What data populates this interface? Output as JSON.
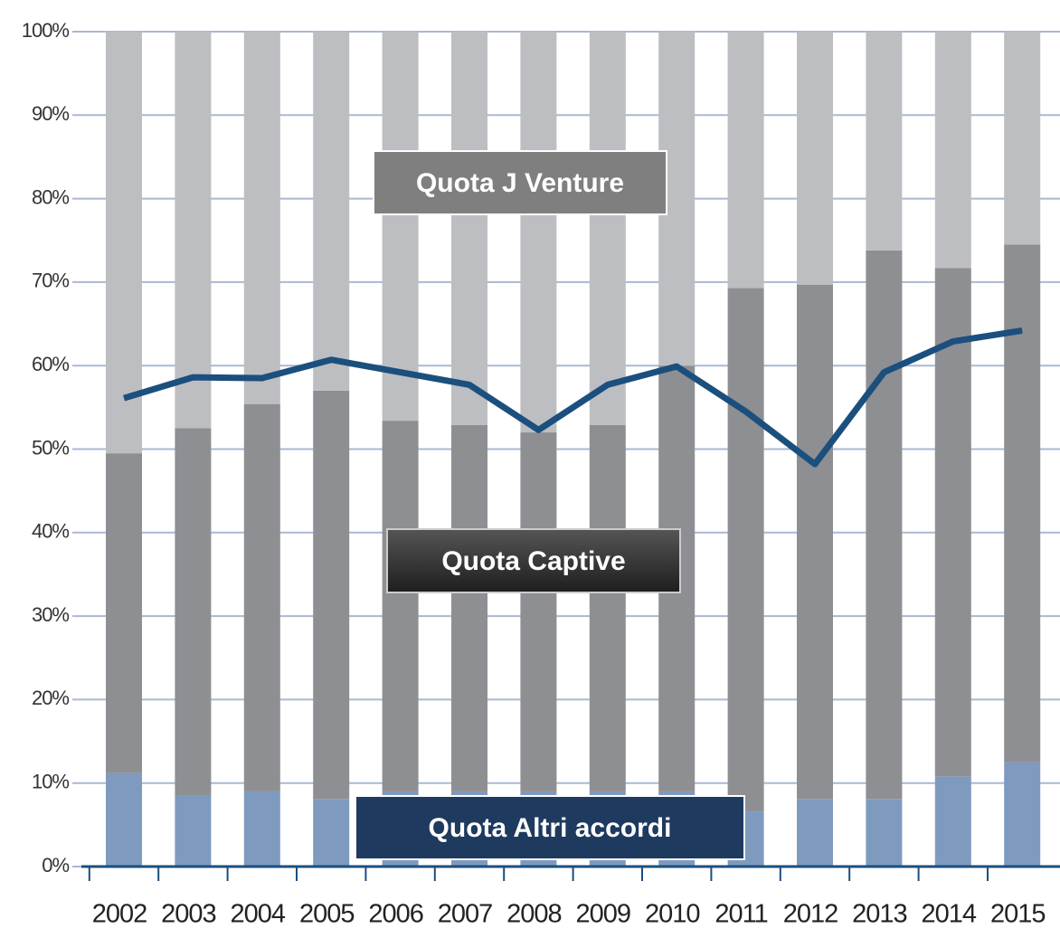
{
  "chart_data": {
    "type": "bar",
    "stacked": true,
    "categories": [
      "2002",
      "2003",
      "2004",
      "2005",
      "2006",
      "2007",
      "2008",
      "2009",
      "2010",
      "2011",
      "2012",
      "2013",
      "2014",
      "2015"
    ],
    "series": [
      {
        "name": "Quota Altri accordi",
        "color": "#7f9abf",
        "values": [
          11.2,
          8.5,
          9,
          8.1,
          9,
          9,
          9,
          9,
          9,
          6.6,
          8.1,
          8.1,
          10.8,
          12.5
        ]
      },
      {
        "name": "Quota Captive",
        "color": "#8e8f93",
        "values": [
          38.3,
          44,
          46.4,
          48.9,
          44.4,
          43.9,
          43,
          43.9,
          51,
          62.7,
          61.6,
          65.7,
          60.9,
          62
        ]
      },
      {
        "name": "Quota J Venture",
        "color": "#bdbec2",
        "values": [
          50.5,
          47.5,
          44.6,
          43,
          46.6,
          47.1,
          48,
          47.1,
          40,
          30.7,
          30.3,
          26.2,
          28.3,
          25.5
        ]
      },
      {
        "type": "line",
        "color": "#1b4f7e",
        "values": [
          56.1,
          58.6,
          58.5,
          60.7,
          59.2,
          57.7,
          52.3,
          57.7,
          59.9,
          54.5,
          48.2,
          59.2,
          62.9,
          64.2
        ]
      }
    ],
    "ylim": [
      0,
      100
    ],
    "yticks": [
      {
        "value": 0,
        "label": "0%"
      },
      {
        "value": 10,
        "label": "10%"
      },
      {
        "value": 20,
        "label": "20%"
      },
      {
        "value": 30,
        "label": "30%"
      },
      {
        "value": 40,
        "label": "40%"
      },
      {
        "value": 50,
        "label": "50%"
      },
      {
        "value": 60,
        "label": "60%"
      },
      {
        "value": 70,
        "label": "70%"
      },
      {
        "value": 80,
        "label": "80%"
      },
      {
        "value": 90,
        "label": "90%"
      },
      {
        "value": 100,
        "label": "100%"
      }
    ],
    "grid": true
  }
}
